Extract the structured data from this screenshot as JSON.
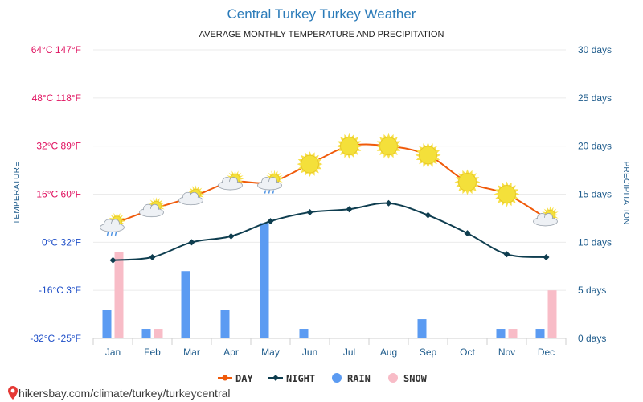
{
  "title": "Central Turkey Turkey Weather",
  "subtitle": "AVERAGE MONTHLY TEMPERATURE AND PRECIPITATION",
  "watermark": "hikersbay.com/climate/turkey/turkeycentral",
  "colors": {
    "day": "#f05a0a",
    "night": "#0e3d4f",
    "rain": "#5b9bf2",
    "snow": "#f8bcc7",
    "temp_tick_hot": "#e0115f",
    "temp_tick_cold": "#1f4fc8",
    "precip_tick": "#1f5c8c",
    "title": "#2b7bb9"
  },
  "chart_data": {
    "type": "line",
    "title": "Central Turkey Turkey Weather",
    "subtitle": "AVERAGE MONTHLY TEMPERATURE AND PRECIPITATION",
    "categories": [
      "Jan",
      "Feb",
      "Mar",
      "Apr",
      "May",
      "Jun",
      "Jul",
      "Aug",
      "Sep",
      "Oct",
      "Nov",
      "Dec"
    ],
    "y_left": {
      "label": "TEMPERATURE",
      "range": [
        -32,
        64
      ],
      "ticks": [
        "64°C 147°F",
        "48°C 118°F",
        "32°C 89°F",
        "16°C 60°F",
        "0°C 32°F",
        "-16°C 3°F",
        "-32°C -25°F"
      ]
    },
    "y_right": {
      "label": "PRECIPITATION",
      "range": [
        0,
        30
      ],
      "ticks": [
        "30 days",
        "25 days",
        "20 days",
        "15 days",
        "10 days",
        "5 days",
        "0 days"
      ]
    },
    "series": [
      {
        "name": "DAY",
        "kind": "line",
        "axis": "left",
        "values": [
          6,
          11,
          15,
          20,
          20,
          26,
          32,
          32,
          29,
          20,
          16,
          8
        ]
      },
      {
        "name": "NIGHT",
        "kind": "line",
        "axis": "left",
        "values": [
          -6,
          -5,
          0,
          2,
          7,
          10,
          11,
          13,
          9,
          3,
          -4,
          -5
        ]
      },
      {
        "name": "RAIN",
        "kind": "bar",
        "axis": "right",
        "values": [
          3,
          1,
          7,
          3,
          12,
          1,
          0,
          0,
          2,
          0,
          1,
          1
        ]
      },
      {
        "name": "SNOW",
        "kind": "bar",
        "axis": "right",
        "values": [
          9,
          1,
          0,
          0,
          0,
          0,
          0,
          0,
          0,
          0,
          1,
          5
        ]
      }
    ],
    "weather_icons": [
      "cloud-rain-sun-icon",
      "cloud-sun-icon",
      "cloud-sun-icon",
      "cloud-sun-icon",
      "cloud-rain-sun-icon",
      "sun-icon",
      "sun-icon",
      "sun-icon",
      "sun-icon",
      "sun-icon",
      "sun-icon",
      "cloud-sun-icon"
    ],
    "legend": [
      "DAY",
      "NIGHT",
      "RAIN",
      "SNOW"
    ],
    "legend_position": "bottom",
    "grid": true
  }
}
